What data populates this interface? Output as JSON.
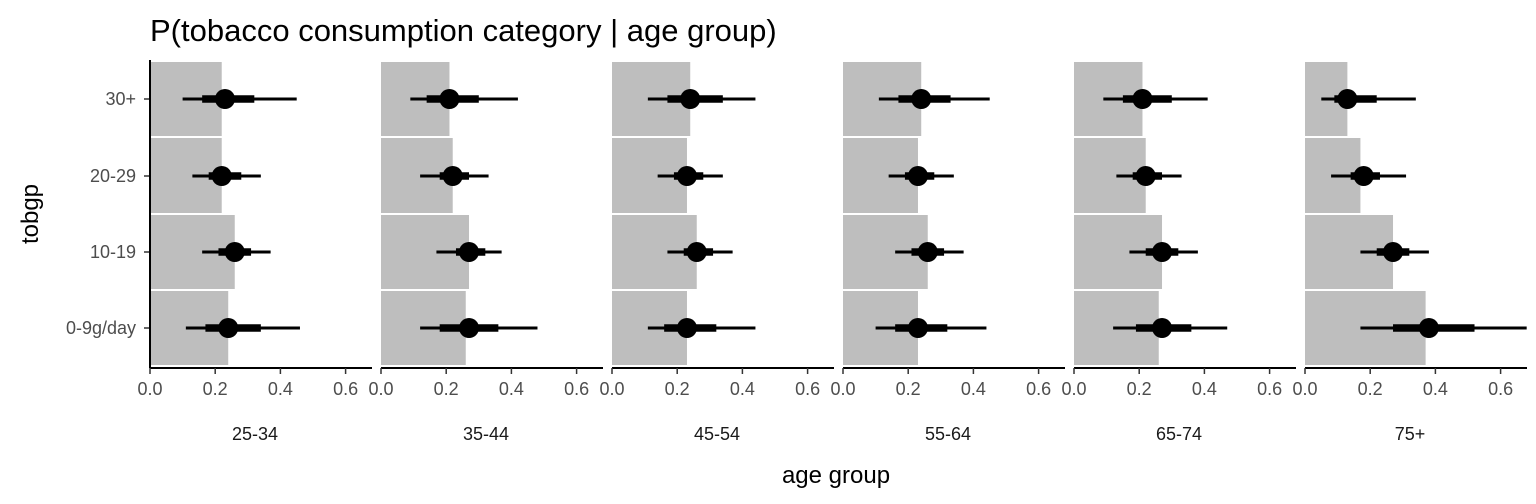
{
  "chart_data": {
    "type": "bar",
    "title": "P(tobacco consumption category | age group)",
    "xlabel": "age group",
    "ylabel": "tobgp",
    "xlim": [
      0,
      0.65
    ],
    "x_ticks": [
      0.0,
      0.2,
      0.4,
      0.6
    ],
    "x_tick_labels": [
      "0.0",
      "0.2",
      "0.4",
      "0.6"
    ],
    "categories": [
      "0-9g/day",
      "10-19",
      "20-29",
      "30+"
    ],
    "grid": false,
    "legend": "none",
    "colors": {
      "bar": "#bebebe",
      "point": "#000000",
      "axis": "#000000",
      "tick_label": "#4d4d4d"
    },
    "facets": [
      {
        "label": "25-34",
        "bars": [
          0.24,
          0.26,
          0.22,
          0.22
        ],
        "points": [
          0.24,
          0.26,
          0.22,
          0.23
        ],
        "inner": [
          [
            0.17,
            0.34
          ],
          [
            0.21,
            0.31
          ],
          [
            0.18,
            0.28
          ],
          [
            0.16,
            0.32
          ]
        ],
        "outer": [
          [
            0.11,
            0.46
          ],
          [
            0.16,
            0.37
          ],
          [
            0.13,
            0.34
          ],
          [
            0.1,
            0.45
          ]
        ]
      },
      {
        "label": "35-44",
        "bars": [
          0.26,
          0.27,
          0.22,
          0.21
        ],
        "points": [
          0.27,
          0.27,
          0.22,
          0.21
        ],
        "inner": [
          [
            0.18,
            0.36
          ],
          [
            0.23,
            0.32
          ],
          [
            0.18,
            0.27
          ],
          [
            0.14,
            0.3
          ]
        ],
        "outer": [
          [
            0.12,
            0.48
          ],
          [
            0.17,
            0.37
          ],
          [
            0.12,
            0.33
          ],
          [
            0.09,
            0.42
          ]
        ]
      },
      {
        "label": "45-54",
        "bars": [
          0.23,
          0.26,
          0.23,
          0.24
        ],
        "points": [
          0.23,
          0.26,
          0.23,
          0.24
        ],
        "inner": [
          [
            0.16,
            0.32
          ],
          [
            0.22,
            0.31
          ],
          [
            0.19,
            0.28
          ],
          [
            0.17,
            0.34
          ]
        ],
        "outer": [
          [
            0.11,
            0.44
          ],
          [
            0.17,
            0.37
          ],
          [
            0.14,
            0.34
          ],
          [
            0.11,
            0.44
          ]
        ]
      },
      {
        "label": "55-64",
        "bars": [
          0.23,
          0.26,
          0.23,
          0.24
        ],
        "points": [
          0.23,
          0.26,
          0.23,
          0.24
        ],
        "inner": [
          [
            0.16,
            0.32
          ],
          [
            0.21,
            0.31
          ],
          [
            0.19,
            0.28
          ],
          [
            0.17,
            0.33
          ]
        ],
        "outer": [
          [
            0.1,
            0.44
          ],
          [
            0.16,
            0.37
          ],
          [
            0.14,
            0.34
          ],
          [
            0.11,
            0.45
          ]
        ]
      },
      {
        "label": "65-74",
        "bars": [
          0.26,
          0.27,
          0.22,
          0.21
        ],
        "points": [
          0.27,
          0.27,
          0.22,
          0.21
        ],
        "inner": [
          [
            0.19,
            0.36
          ],
          [
            0.22,
            0.32
          ],
          [
            0.18,
            0.27
          ],
          [
            0.15,
            0.3
          ]
        ],
        "outer": [
          [
            0.12,
            0.47
          ],
          [
            0.17,
            0.38
          ],
          [
            0.13,
            0.33
          ],
          [
            0.09,
            0.41
          ]
        ]
      },
      {
        "label": "75+",
        "bars": [
          0.37,
          0.27,
          0.17,
          0.13
        ],
        "points": [
          0.38,
          0.27,
          0.18,
          0.13
        ],
        "inner": [
          [
            0.27,
            0.52
          ],
          [
            0.22,
            0.32
          ],
          [
            0.14,
            0.23
          ],
          [
            0.09,
            0.22
          ]
        ],
        "outer": [
          [
            0.17,
            0.68
          ],
          [
            0.17,
            0.38
          ],
          [
            0.08,
            0.31
          ],
          [
            0.05,
            0.34
          ]
        ]
      }
    ]
  }
}
